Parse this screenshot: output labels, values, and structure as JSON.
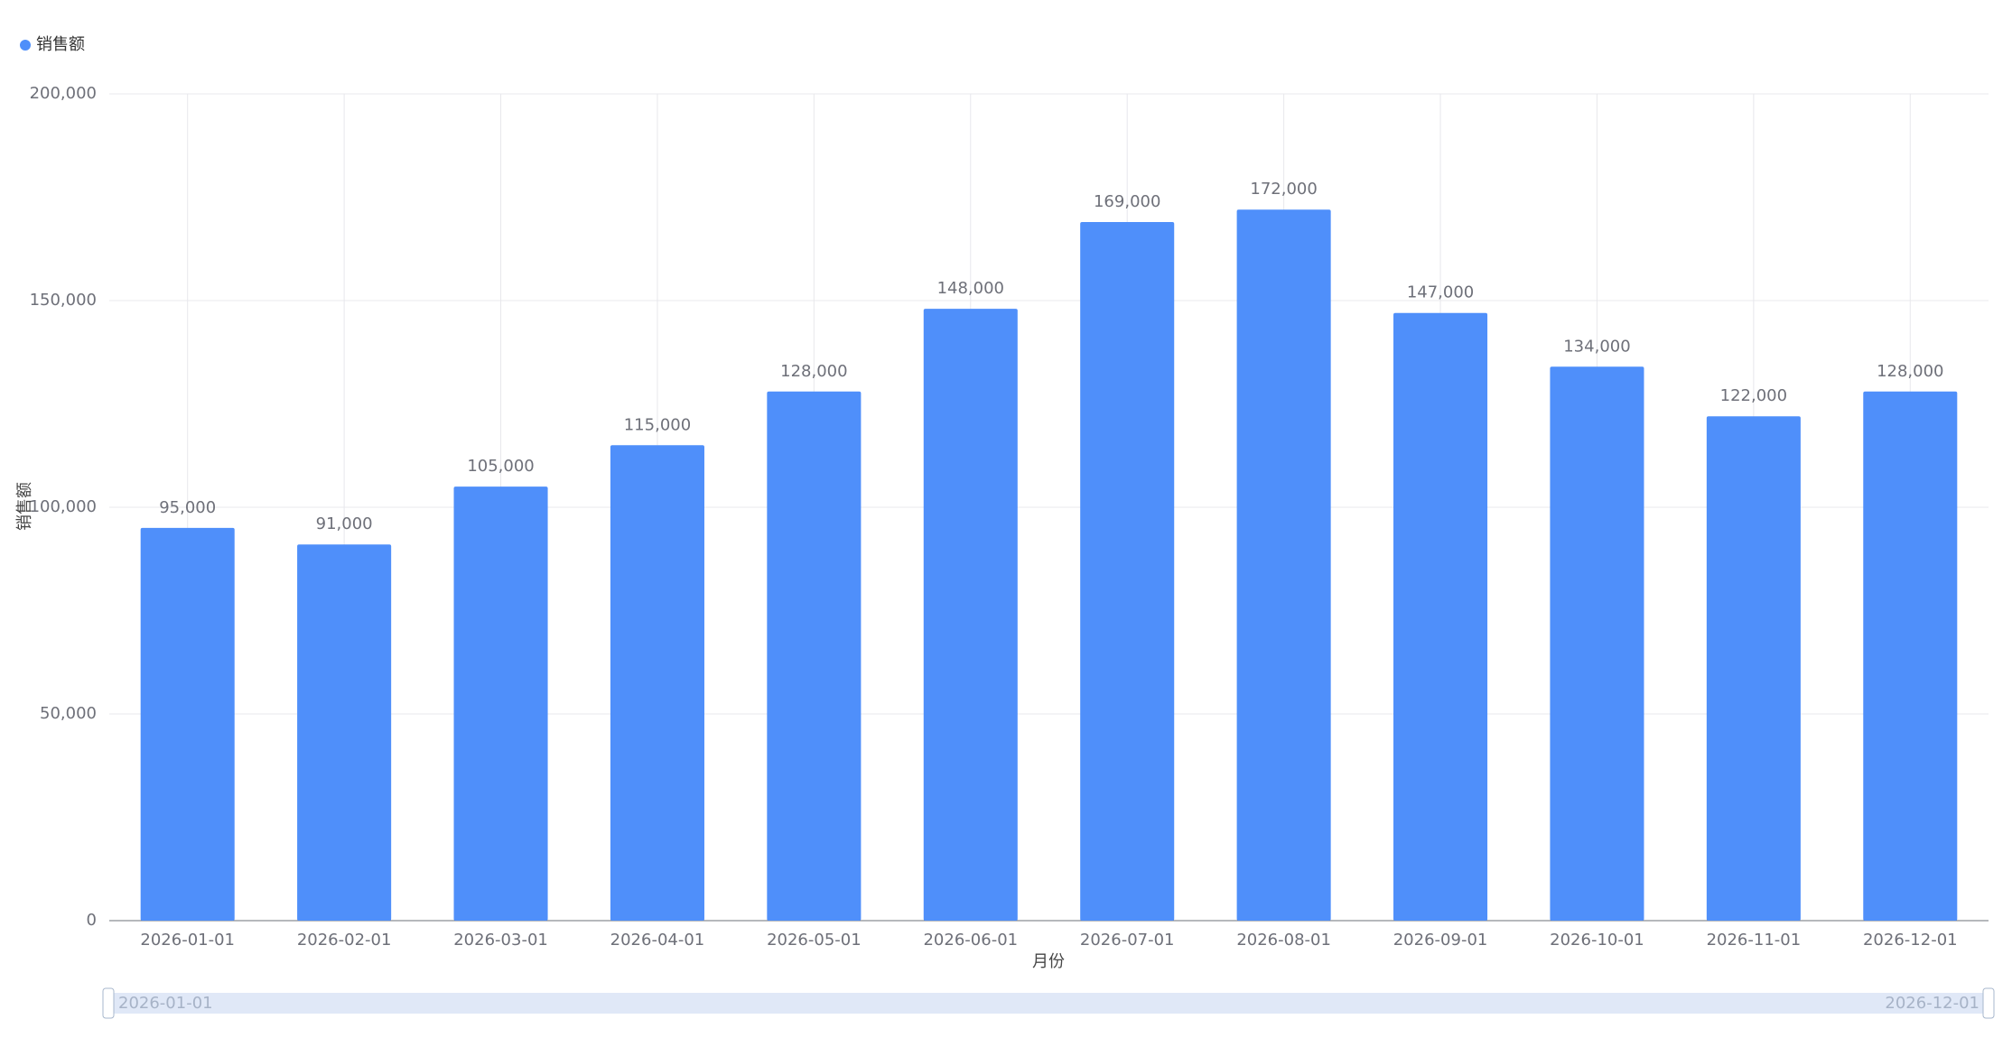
{
  "chart_data": {
    "type": "bar",
    "x_label": "月份",
    "y_label": "销售额",
    "categories": [
      "2026-01-01",
      "2026-02-01",
      "2026-03-01",
      "2026-04-01",
      "2026-05-01",
      "2026-06-01",
      "2026-07-01",
      "2026-08-01",
      "2026-09-01",
      "2026-10-01",
      "2026-11-01",
      "2026-12-01"
    ],
    "series": [
      {
        "name": "销售额",
        "color": "#4f8ffa",
        "values": [
          95000,
          91000,
          105000,
          115000,
          128000,
          148000,
          169000,
          172000,
          147000,
          134000,
          122000,
          128000
        ],
        "value_labels": [
          "95,000",
          "91,000",
          "105,000",
          "115,000",
          "128,000",
          "148,000",
          "169,000",
          "172,000",
          "147,000",
          "134,000",
          "122,000",
          "128,000"
        ]
      }
    ],
    "ylim": [
      0,
      200000
    ],
    "yticks": [
      0,
      {
        "value": 50000,
        "label": "50,000"
      },
      {
        "value": 100000,
        "label": "100,000"
      },
      {
        "value": 150000,
        "label": "150,000"
      },
      {
        "value": 200000,
        "label": "200,000"
      }
    ],
    "grid": true,
    "legend": "top-left"
  }
}
